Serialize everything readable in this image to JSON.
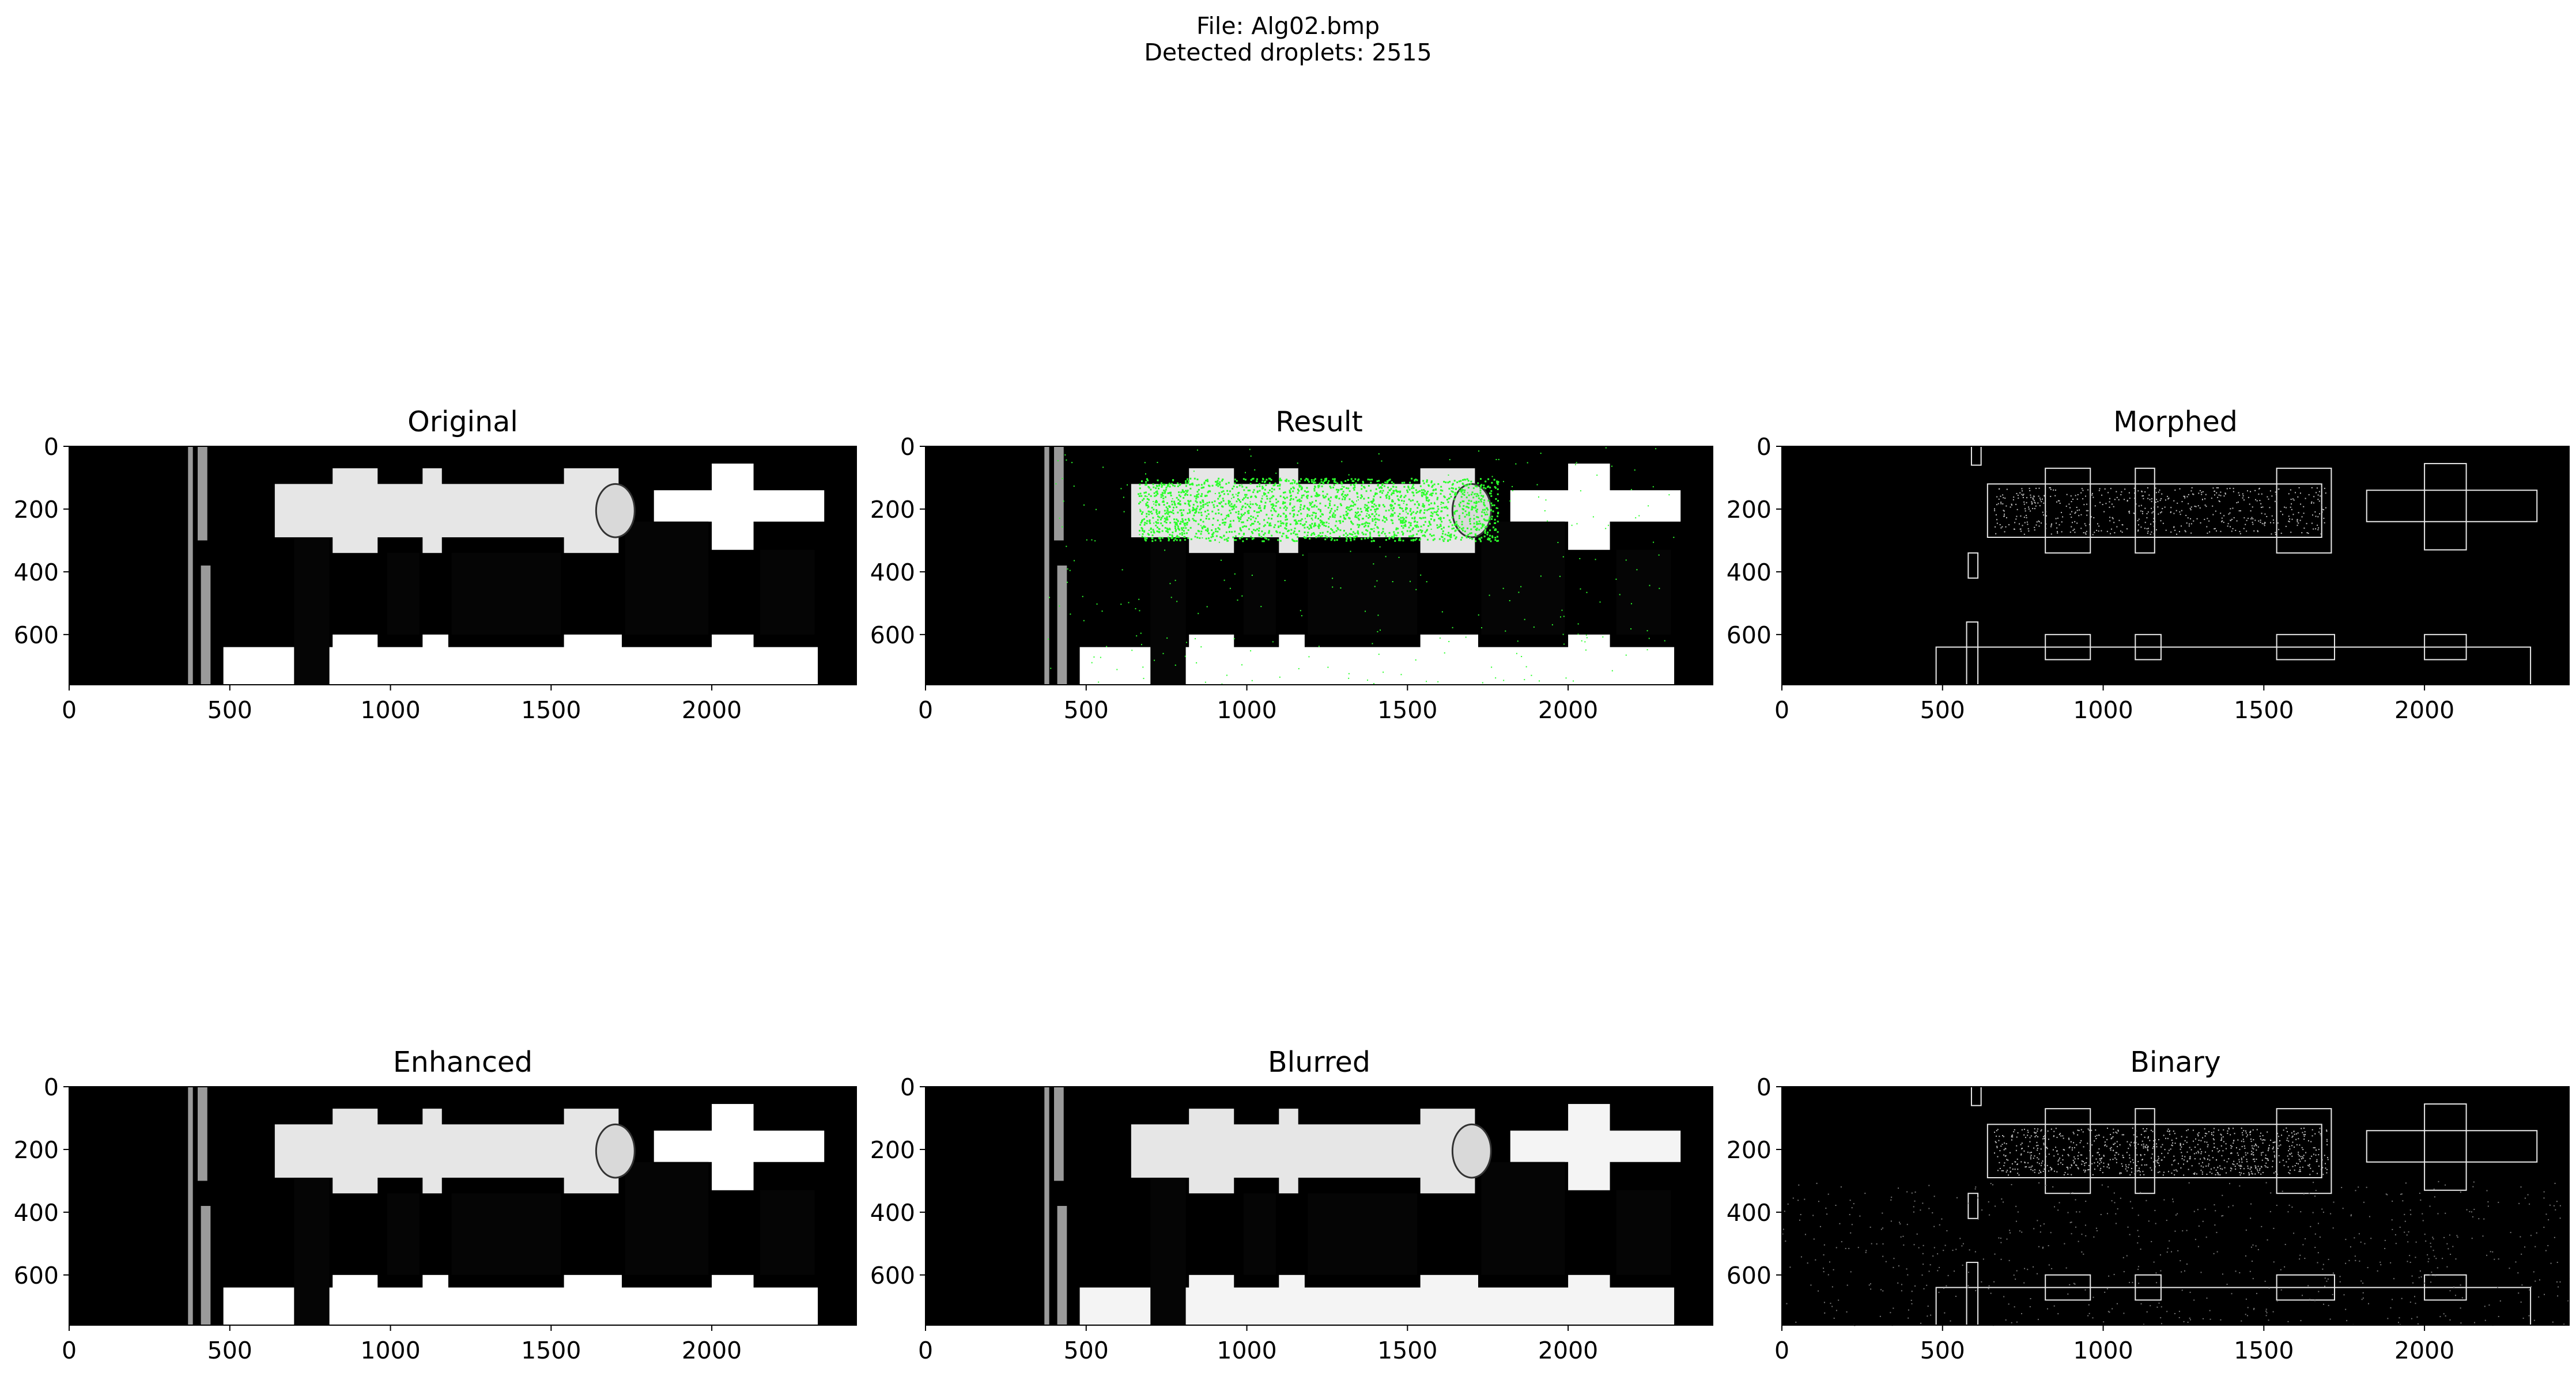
{
  "figure": {
    "suptitle_file": "File: Alg02.bmp",
    "suptitle_count": "Detected droplets: 2515"
  },
  "panels": [
    {
      "title": "Original",
      "style": "original"
    },
    {
      "title": "Result",
      "style": "result"
    },
    {
      "title": "Morphed",
      "style": "edges"
    },
    {
      "title": "Enhanced",
      "style": "original"
    },
    {
      "title": "Blurred",
      "style": "blurred"
    },
    {
      "title": "Binary",
      "style": "binary"
    }
  ],
  "axes": {
    "x_range": [
      0,
      2450
    ],
    "y_range": [
      760,
      0
    ],
    "x_ticks": [
      0,
      500,
      1000,
      1500,
      2000
    ],
    "y_ticks": [
      0,
      200,
      400,
      600
    ]
  },
  "colors": {
    "detection": "#2bff2b",
    "background": "#000000",
    "bright": "#ffffff"
  }
}
